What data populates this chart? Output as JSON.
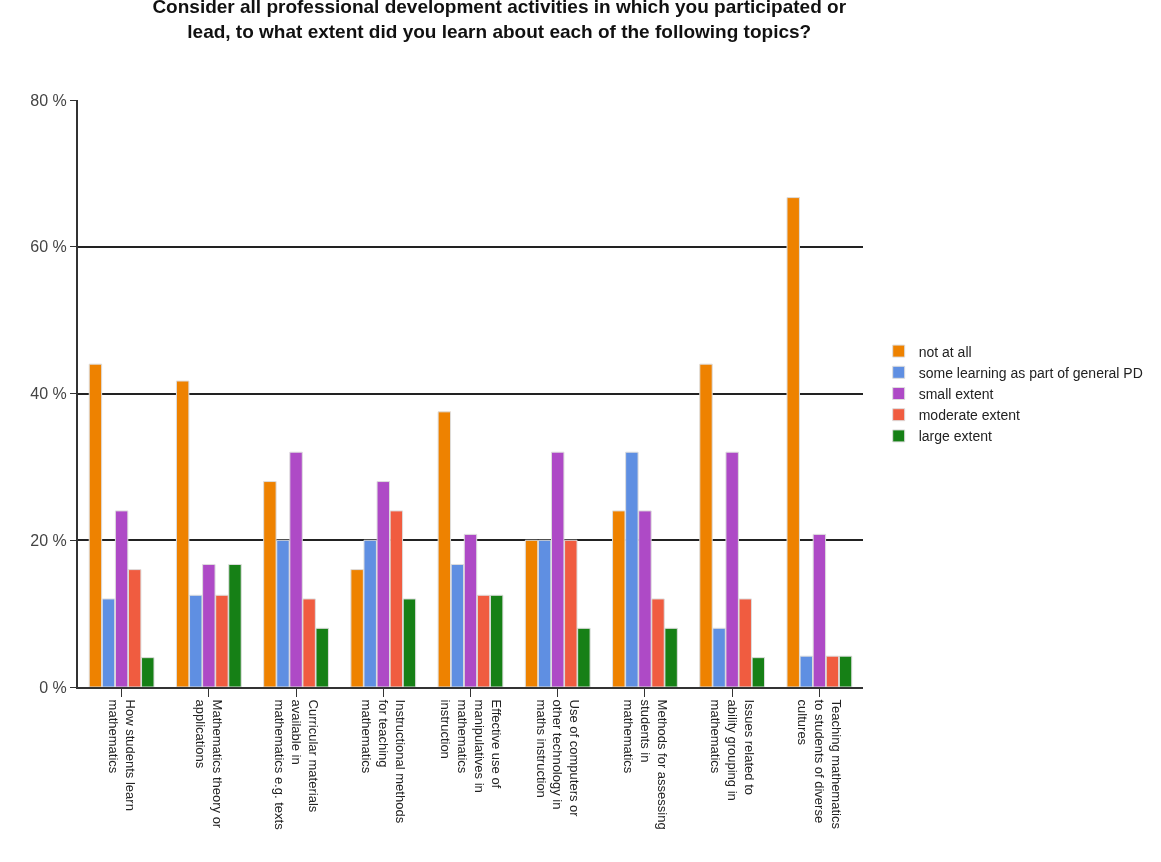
{
  "chart_data": {
    "type": "bar",
    "title": "Consider all professional development activities in which you participated or lead, to what extent did you learn about each of the following topics?",
    "categories": [
      "How students learn mathematics",
      "Mathematics theory or applications",
      "Curricular materials available in mathematics e.g. texts",
      "Instructional methods for teaching mathematics",
      "Effective use of manipulatives in mathematics instruction",
      "Use of computers or other technology in maths instruction",
      "Methods for assessing students in mathematics",
      "Issues related to ability grouping in mathematics",
      "Teaching mathematics to students of diverse cultures"
    ],
    "series": [
      {
        "name": "not at all",
        "color": "#ee8200",
        "values": [
          44,
          41.7,
          28,
          16,
          37.5,
          20,
          24,
          44,
          66.7
        ]
      },
      {
        "name": "some learning as part of general PD",
        "color": "#5f8fe2",
        "values": [
          12,
          12.5,
          20,
          20,
          16.7,
          20,
          32,
          8,
          4.2
        ]
      },
      {
        "name": "small extent",
        "color": "#ae4ac6",
        "values": [
          24,
          16.7,
          32,
          28,
          20.8,
          32,
          24,
          32,
          20.8
        ]
      },
      {
        "name": "moderate extent",
        "color": "#f05c40",
        "values": [
          16,
          12.5,
          12,
          24,
          12.5,
          20,
          12,
          12,
          4.2
        ]
      },
      {
        "name": "large extent",
        "color": "#168016",
        "values": [
          4,
          16.7,
          8,
          12,
          12.5,
          8,
          8,
          4,
          4.2
        ]
      }
    ],
    "ylim": [
      0,
      80
    ],
    "yticks": [
      {
        "value": 0,
        "label": "0 %"
      },
      {
        "value": 20,
        "label": "20 %"
      },
      {
        "value": 40,
        "label": "40 %"
      },
      {
        "value": 60,
        "label": "60 %"
      },
      {
        "value": 80,
        "label": "80 %"
      }
    ],
    "grid": "y",
    "legend": "right"
  }
}
